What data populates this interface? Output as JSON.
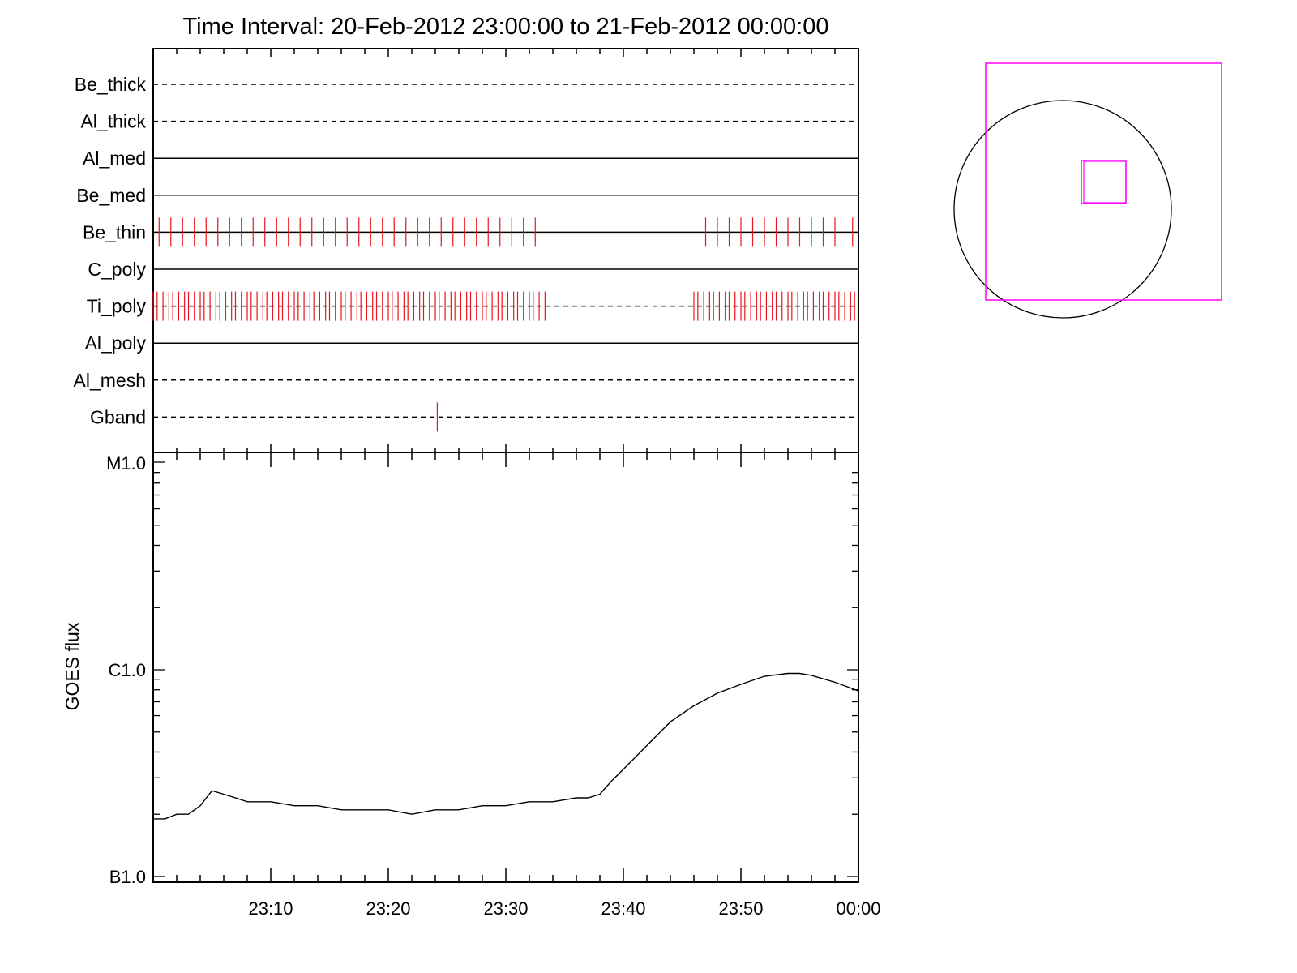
{
  "chart_data": [
    {
      "type": "timeline",
      "title": "Time Interval: 20-Feb-2012 23:00:00 to 21-Feb-2012 00:00:00",
      "x_range": [
        "23:00",
        "00:00"
      ],
      "rows": [
        {
          "label": "Be_thick",
          "style": "dashed",
          "events": []
        },
        {
          "label": "Al_thick",
          "style": "dashed",
          "events": []
        },
        {
          "label": "Al_med",
          "style": "solid",
          "events": []
        },
        {
          "label": "Be_med",
          "style": "solid",
          "events": []
        },
        {
          "label": "Be_thin",
          "style": "solid",
          "events": [
            "23:00:30",
            "23:01:30",
            "23:02:30",
            "23:03:30",
            "23:04:30",
            "23:05:30",
            "23:06:30",
            "23:07:30",
            "23:08:30",
            "23:09:30",
            "23:10:30",
            "23:11:30",
            "23:12:30",
            "23:13:30",
            "23:14:30",
            "23:15:30",
            "23:16:30",
            "23:17:30",
            "23:18:30",
            "23:19:30",
            "23:20:30",
            "23:21:30",
            "23:22:30",
            "23:23:30",
            "23:24:30",
            "23:25:30",
            "23:26:30",
            "23:27:30",
            "23:28:30",
            "23:29:30",
            "23:30:30",
            "23:31:30",
            "23:32:30",
            "23:47:00",
            "23:48:00",
            "23:49:00",
            "23:50:00",
            "23:51:00",
            "23:52:00",
            "23:53:00",
            "23:54:00",
            "23:55:00",
            "23:56:00",
            "23:57:00",
            "23:58:00",
            "23:59:30"
          ]
        },
        {
          "label": "C_poly",
          "style": "solid",
          "events": []
        },
        {
          "label": "Ti_poly",
          "style": "dashed",
          "events": [
            "23:00:00",
            "23:00:20",
            "23:00:50",
            "23:01:20",
            "23:01:40",
            "23:02:10",
            "23:02:40",
            "23:03:00",
            "23:03:30",
            "23:04:00",
            "23:04:20",
            "23:04:50",
            "23:05:20",
            "23:05:40",
            "23:06:10",
            "23:06:40",
            "23:07:00",
            "23:07:30",
            "23:08:00",
            "23:08:20",
            "23:08:50",
            "23:09:20",
            "23:09:40",
            "23:10:10",
            "23:10:40",
            "23:11:00",
            "23:11:30",
            "23:12:00",
            "23:12:20",
            "23:12:50",
            "23:13:20",
            "23:13:40",
            "23:14:10",
            "23:14:40",
            "23:15:00",
            "23:15:30",
            "23:16:00",
            "23:16:20",
            "23:16:50",
            "23:17:20",
            "23:17:40",
            "23:18:10",
            "23:18:40",
            "23:19:00",
            "23:19:30",
            "23:20:00",
            "23:20:20",
            "23:20:50",
            "23:21:20",
            "23:21:40",
            "23:22:10",
            "23:22:40",
            "23:23:00",
            "23:23:30",
            "23:24:00",
            "23:24:20",
            "23:24:50",
            "23:25:20",
            "23:25:40",
            "23:26:10",
            "23:26:40",
            "23:27:00",
            "23:27:30",
            "23:28:00",
            "23:28:20",
            "23:28:50",
            "23:29:20",
            "23:29:40",
            "23:30:10",
            "23:30:40",
            "23:31:00",
            "23:31:30",
            "23:32:00",
            "23:32:20",
            "23:32:50",
            "23:33:20",
            "23:46:00",
            "23:46:20",
            "23:46:50",
            "23:47:20",
            "23:47:40",
            "23:48:10",
            "23:48:40",
            "23:49:00",
            "23:49:30",
            "23:50:00",
            "23:50:20",
            "23:50:50",
            "23:51:20",
            "23:51:40",
            "23:52:10",
            "23:52:40",
            "23:53:00",
            "23:53:30",
            "23:54:00",
            "23:54:20",
            "23:54:50",
            "23:55:20",
            "23:55:40",
            "23:56:10",
            "23:56:40",
            "23:57:00",
            "23:57:30",
            "23:58:00",
            "23:58:20",
            "23:58:50",
            "23:59:20",
            "23:59:40"
          ]
        },
        {
          "label": "Al_poly",
          "style": "solid",
          "events": []
        },
        {
          "label": "Al_mesh",
          "style": "dashed",
          "events": []
        },
        {
          "label": "Gband",
          "style": "dashed",
          "events": [
            "23:24:10"
          ]
        }
      ],
      "event_color": "#e8141c"
    },
    {
      "type": "line",
      "ylabel": "GOES flux",
      "y_scale": "log",
      "y_ticks": [
        "B1.0",
        "C1.0",
        "M1.0"
      ],
      "ylim": [
        "B1.0",
        "M1.0"
      ],
      "xlim": [
        "23:00",
        "00:00"
      ],
      "x_ticks": [
        "23:10",
        "23:20",
        "23:30",
        "23:40",
        "23:50",
        "00:00"
      ],
      "series": [
        {
          "x": [
            "23:00",
            "23:01",
            "23:02",
            "23:03",
            "23:04",
            "23:05",
            "23:06",
            "23:07",
            "23:08",
            "23:09",
            "23:10",
            "23:12",
            "23:14",
            "23:16",
            "23:18",
            "23:20",
            "23:22",
            "23:24",
            "23:26",
            "23:28",
            "23:30",
            "23:32",
            "23:34",
            "23:36",
            "23:37",
            "23:38",
            "23:39",
            "23:40",
            "23:42",
            "23:44",
            "23:46",
            "23:48",
            "23:50",
            "23:52",
            "23:54",
            "23:55",
            "23:56",
            "23:58",
            "00:00"
          ],
          "values": [
            "B1.9",
            "B1.9",
            "B2.0",
            "B2.0",
            "B2.2",
            "B2.6",
            "B2.5",
            "B2.4",
            "B2.3",
            "B2.3",
            "B2.3",
            "B2.2",
            "B2.2",
            "B2.1",
            "B2.1",
            "B2.1",
            "B2.0",
            "B2.1",
            "B2.1",
            "B2.2",
            "B2.2",
            "B2.3",
            "B2.3",
            "B2.4",
            "B2.4",
            "B2.5",
            "B2.9",
            "B3.3",
            "B4.3",
            "B5.6",
            "B6.7",
            "B7.7",
            "B8.5",
            "B9.3",
            "B9.6",
            "B9.6",
            "B9.4",
            "B8.7",
            "B7.9"
          ],
          "color": "#000000"
        }
      ]
    },
    {
      "type": "diagram",
      "shapes": [
        "circle",
        "large-square",
        "small-square"
      ],
      "colors": {
        "circle": "#000000",
        "squares": "#ff00ff"
      }
    }
  ]
}
